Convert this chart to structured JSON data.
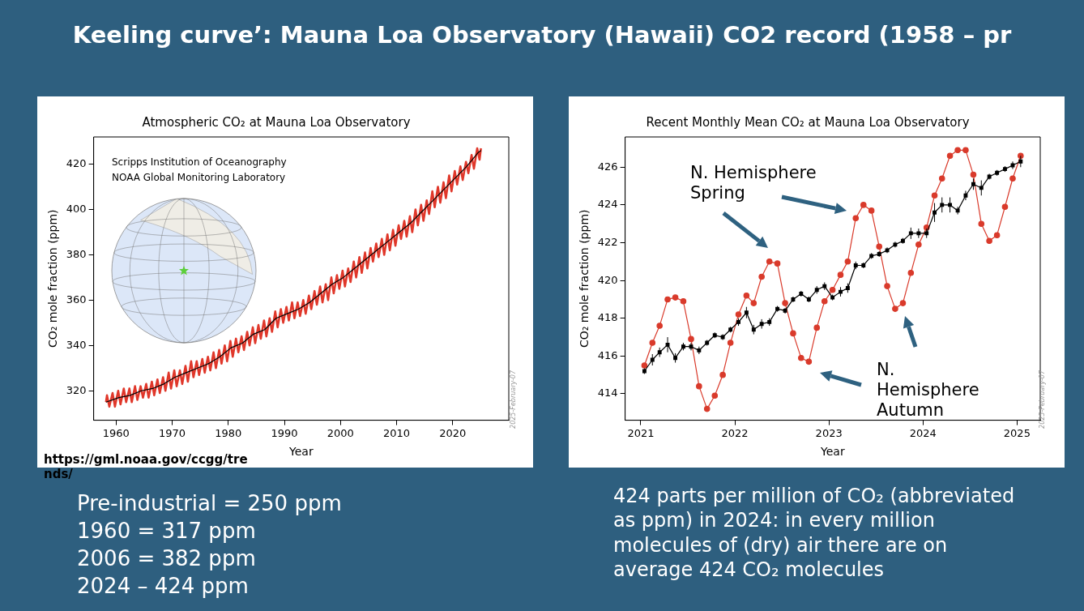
{
  "chart_data": [
    {
      "type": "line",
      "title": "Atmospheric CO₂ at Mauna Loa Observatory",
      "xlabel": "Year",
      "ylabel": "CO₂ mole fraction (ppm)",
      "xlim": [
        1956,
        2030
      ],
      "ylim": [
        307,
        432
      ],
      "xticks": [
        1960,
        1970,
        1980,
        1990,
        2000,
        2010,
        2020
      ],
      "yticks": [
        320,
        340,
        360,
        380,
        400,
        420
      ],
      "annotations": [
        "Scripps Institution of Oceanography",
        "NOAA Global Monitoring Laboratory",
        "2025-February-07"
      ],
      "series": [
        {
          "color": "#e0372a",
          "x": [
            1958.2,
            1958.37,
            1958.79,
            1959.37,
            1959.79,
            1960.37,
            1960.79,
            1961.37,
            1961.79,
            1962.37,
            1962.79,
            1963.37,
            1963.79,
            1964.37,
            1964.79,
            1965.37,
            1965.79,
            1966.37,
            1966.79,
            1967.37,
            1967.79,
            1968.37,
            1968.79,
            1969.37,
            1969.79,
            1970.37,
            1970.79,
            1971.37,
            1971.79,
            1972.37,
            1972.79,
            1973.37,
            1973.79,
            1974.37,
            1974.79,
            1975.37,
            1975.79,
            1976.37,
            1976.79,
            1977.37,
            1977.79,
            1978.37,
            1978.79,
            1979.37,
            1979.79,
            1980.37,
            1980.79,
            1981.37,
            1981.79,
            1982.37,
            1982.79,
            1983.37,
            1983.79,
            1984.37,
            1984.79,
            1985.37,
            1985.79,
            1986.37,
            1986.79,
            1987.37,
            1987.79,
            1988.37,
            1988.79,
            1989.37,
            1989.79,
            1990.37,
            1990.79,
            1991.37,
            1991.79,
            1992.37,
            1992.79,
            1993.37,
            1993.79,
            1994.37,
            1994.79,
            1995.37,
            1995.79,
            1996.37,
            1996.79,
            1997.37,
            1997.79,
            1998.37,
            1998.79,
            1999.37,
            1999.79,
            2000.37,
            2000.79,
            2001.37,
            2001.79,
            2002.37,
            2002.79,
            2003.37,
            2003.79,
            2004.37,
            2004.79,
            2005.37,
            2005.79,
            2006.37,
            2006.79,
            2007.37,
            2007.79,
            2008.37,
            2008.79,
            2009.37,
            2009.79,
            2010.37,
            2010.79,
            2011.37,
            2011.79,
            2012.37,
            2012.79,
            2013.37,
            2013.79,
            2014.37,
            2014.79,
            2015.37,
            2015.79,
            2016.37,
            2016.79,
            2017.37,
            2017.79,
            2018.37,
            2018.79,
            2019.37,
            2019.79,
            2020.37,
            2020.79,
            2021.37,
            2021.79,
            2022.37,
            2022.79,
            2023.37,
            2023.79,
            2024.37,
            2024.79,
            2025.04
          ],
          "values": [
            315,
            318,
            313,
            319,
            313,
            320,
            314,
            321,
            315,
            321,
            315,
            322,
            316,
            322,
            317,
            323,
            317,
            324,
            318,
            325,
            319,
            326,
            320,
            328,
            321,
            329,
            322,
            329,
            323,
            331,
            324,
            333,
            326,
            333,
            327,
            334,
            328,
            335,
            329,
            337,
            330,
            338,
            332,
            340,
            333,
            342,
            335,
            343,
            337,
            344,
            338,
            346,
            340,
            348,
            341,
            349,
            343,
            351,
            344,
            352,
            346,
            355,
            348,
            356,
            350,
            357,
            351,
            359,
            352,
            359,
            353,
            360,
            354,
            362,
            356,
            364,
            358,
            366,
            359,
            367,
            360,
            370,
            363,
            371,
            365,
            373,
            366,
            374,
            368,
            377,
            370,
            379,
            372,
            381,
            374,
            383,
            377,
            385,
            379,
            387,
            380,
            389,
            382,
            391,
            384,
            393,
            387,
            395,
            388,
            397,
            390,
            400,
            393,
            402,
            395,
            404,
            398,
            408,
            401,
            410,
            403,
            412,
            405,
            415,
            408,
            417,
            411,
            419,
            413,
            421,
            416,
            424,
            418,
            427,
            422,
            427
          ]
        },
        {
          "color": "#000000",
          "x": [
            1958.2,
            1960.5,
            1962.5,
            1964.5,
            1966.5,
            1968.5,
            1970.5,
            1972.5,
            1974.5,
            1976.5,
            1978.5,
            1980.5,
            1982.5,
            1984.5,
            1986.5,
            1988.5,
            1990.5,
            1992.5,
            1994.5,
            1996.5,
            1998.5,
            2000.5,
            2002.5,
            2004.5,
            2006.5,
            2008.5,
            2010.5,
            2012.5,
            2014.5,
            2016.5,
            2018.5,
            2020.5,
            2022.5,
            2024.5,
            2025.04
          ],
          "values": [
            315,
            317,
            318,
            320,
            321,
            323,
            326,
            328,
            330,
            332,
            335,
            339,
            341,
            345,
            347,
            352,
            354,
            356,
            359,
            363,
            367,
            370,
            374,
            378,
            382,
            386,
            390,
            394,
            399,
            404,
            409,
            414,
            419,
            425,
            426
          ]
        }
      ]
    },
    {
      "type": "line",
      "title": "Recent Monthly Mean CO₂ at Mauna Loa Observatory",
      "xlabel": "Year",
      "ylabel": "CO₂ mole fraction (ppm)",
      "xlim": [
        "2020-11",
        "2025-04"
      ],
      "ylim": [
        412.6,
        427.6
      ],
      "xticks": [
        "2021",
        "2022",
        "2023",
        "2024",
        "2025"
      ],
      "yticks": [
        414,
        416,
        418,
        420,
        422,
        424,
        426
      ],
      "annotations": [
        "N. Hemisphere Spring",
        "N. Hemisphere Autumn",
        "2025-February-07"
      ],
      "x": [
        "2021-01-15",
        "2021-02-15",
        "2021-03-15",
        "2021-04-15",
        "2021-05-15",
        "2021-06-15",
        "2021-07-15",
        "2021-08-15",
        "2021-09-15",
        "2021-10-15",
        "2021-11-15",
        "2021-12-15",
        "2022-01-15",
        "2022-02-15",
        "2022-03-15",
        "2022-04-15",
        "2022-05-15",
        "2022-06-15",
        "2022-07-15",
        "2022-08-15",
        "2022-09-15",
        "2022-10-15",
        "2022-11-15",
        "2022-12-15",
        "2023-01-15",
        "2023-02-15",
        "2023-03-15",
        "2023-04-15",
        "2023-05-15",
        "2023-06-15",
        "2023-07-15",
        "2023-08-15",
        "2023-09-15",
        "2023-10-15",
        "2023-11-15",
        "2023-12-15",
        "2024-01-15",
        "2024-02-15",
        "2024-03-15",
        "2024-04-15",
        "2024-05-15",
        "2024-06-15",
        "2024-07-15",
        "2024-08-15",
        "2024-09-15",
        "2024-10-15",
        "2024-11-15",
        "2024-12-15",
        "2025-01-15"
      ],
      "series": [
        {
          "color": "#d93a2b",
          "marker": "circle",
          "values": [
            415.5,
            416.7,
            417.6,
            419.0,
            419.1,
            418.9,
            416.9,
            414.4,
            413.2,
            413.9,
            415.0,
            416.7,
            418.2,
            419.2,
            418.8,
            420.2,
            421.0,
            420.9,
            418.8,
            417.2,
            415.9,
            415.7,
            417.5,
            418.9,
            419.5,
            420.3,
            421.0,
            423.3,
            424.0,
            423.7,
            421.8,
            419.7,
            418.5,
            418.8,
            420.4,
            421.9,
            422.8,
            424.5,
            425.4,
            426.6,
            426.9,
            426.9,
            425.6,
            423.0,
            422.1,
            422.4,
            423.9,
            425.4,
            426.6
          ]
        },
        {
          "color": "#000000",
          "marker": "square",
          "values": [
            415.2,
            415.8,
            416.2,
            416.6,
            415.9,
            416.5,
            416.5,
            416.3,
            416.7,
            417.1,
            417.0,
            417.4,
            417.8,
            418.3,
            417.4,
            417.7,
            417.8,
            418.5,
            418.4,
            419.0,
            419.3,
            419.0,
            419.5,
            419.7,
            419.1,
            419.4,
            419.6,
            420.8,
            420.8,
            421.3,
            421.4,
            421.6,
            421.9,
            422.1,
            422.5,
            422.5,
            422.5,
            423.6,
            424.0,
            424.0,
            423.7,
            424.5,
            425.1,
            424.9,
            425.5,
            425.7,
            425.9,
            426.1,
            426.3
          ],
          "errors": [
            0.15,
            0.3,
            0.25,
            0.4,
            0.25,
            0.2,
            0.2,
            0.2,
            0.15,
            0.15,
            0.15,
            0.15,
            0.2,
            0.3,
            0.25,
            0.25,
            0.2,
            0.15,
            0.15,
            0.15,
            0.15,
            0.15,
            0.2,
            0.2,
            0.15,
            0.25,
            0.25,
            0.2,
            0.15,
            0.15,
            0.15,
            0.15,
            0.15,
            0.15,
            0.3,
            0.25,
            0.25,
            0.5,
            0.4,
            0.4,
            0.2,
            0.25,
            0.3,
            0.4,
            0.15,
            0.15,
            0.15,
            0.2,
            0.3
          ]
        }
      ]
    },
    {
      "type": "other",
      "title": "Keeling curve’:  Mauna Loa Observatory (Hawaii) CO2 record (1958 – pr",
      "annotations": [
        "https://gml.noaa.gov/ccgg/trends/",
        "Pre-industrial = 250 ppm",
        "1960 = 317 ppm",
        "2006 = 382 ppm",
        "2024 – 424 ppm",
        "424 parts per million of CO₂ (abbreviated as ppm) in 2024: in every million molecules of (dry) air there are on average 424 CO₂ molecules"
      ]
    }
  ]
}
